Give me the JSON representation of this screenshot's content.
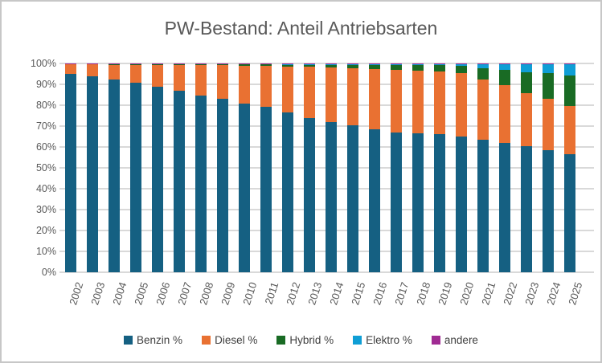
{
  "chart_data": {
    "type": "bar",
    "stacked": true,
    "title": "PW-Bestand: Anteil Antriebsarten",
    "xlabel": "",
    "ylabel": "",
    "categories": [
      "2002",
      "2003",
      "2004",
      "2005",
      "2006",
      "2007",
      "2008",
      "2009",
      "2010",
      "2011",
      "2012",
      "2013",
      "2014",
      "2015",
      "2016",
      "2017",
      "2018",
      "2019",
      "2020",
      "2021",
      "2022",
      "2023",
      "2024",
      "2025"
    ],
    "series": [
      {
        "name": "Benzin %",
        "color": "#156082",
        "values": [
          95.0,
          93.9,
          92.2,
          90.6,
          89.0,
          86.9,
          84.7,
          83.0,
          80.7,
          79.1,
          76.5,
          74.0,
          72.1,
          70.3,
          68.5,
          67.0,
          66.6,
          66.0,
          65.0,
          63.5,
          62.0,
          60.3,
          58.4,
          56.5
        ]
      },
      {
        "name": "Diesel %",
        "color": "#E97132",
        "values": [
          4.7,
          5.8,
          7.4,
          8.9,
          10.4,
          12.4,
          14.5,
          16.1,
          18.2,
          19.7,
          22.0,
          24.3,
          25.9,
          27.4,
          28.8,
          29.9,
          29.8,
          30.0,
          30.3,
          28.7,
          27.5,
          25.6,
          24.5,
          23.2
        ]
      },
      {
        "name": "Hybrid %",
        "color": "#196B24",
        "values": [
          0.0,
          0.0,
          0.1,
          0.2,
          0.3,
          0.4,
          0.5,
          0.6,
          0.8,
          0.9,
          1.1,
          1.3,
          1.5,
          1.8,
          2.1,
          2.4,
          2.8,
          3.1,
          3.4,
          5.5,
          7.4,
          10.0,
          12.3,
          14.4
        ]
      },
      {
        "name": "Elektro %",
        "color": "#0F9ED5",
        "values": [
          0.0,
          0.0,
          0.0,
          0.0,
          0.0,
          0.0,
          0.0,
          0.0,
          0.0,
          0.0,
          0.1,
          0.1,
          0.2,
          0.2,
          0.3,
          0.4,
          0.5,
          0.6,
          1.0,
          2.0,
          2.8,
          3.8,
          4.5,
          5.6
        ]
      },
      {
        "name": "andere",
        "color": "#A02B93",
        "values": [
          0.3,
          0.3,
          0.3,
          0.3,
          0.3,
          0.3,
          0.3,
          0.3,
          0.3,
          0.3,
          0.3,
          0.3,
          0.3,
          0.3,
          0.3,
          0.3,
          0.3,
          0.3,
          0.3,
          0.3,
          0.3,
          0.3,
          0.3,
          0.3
        ]
      }
    ],
    "y_axis": {
      "min": 0,
      "max": 100,
      "tick_step": 10,
      "tick_labels": [
        "0%",
        "10%",
        "20%",
        "30%",
        "40%",
        "50%",
        "60%",
        "70%",
        "80%",
        "90%",
        "100%"
      ]
    },
    "legend_position": "bottom",
    "grid": true,
    "colors": {
      "gridline": "#D9D9D9",
      "axis_text": "#595959",
      "title_text": "#595959",
      "legend_text": "#404040",
      "border": "#C7C7C7",
      "background": "#FFFFFF"
    }
  }
}
